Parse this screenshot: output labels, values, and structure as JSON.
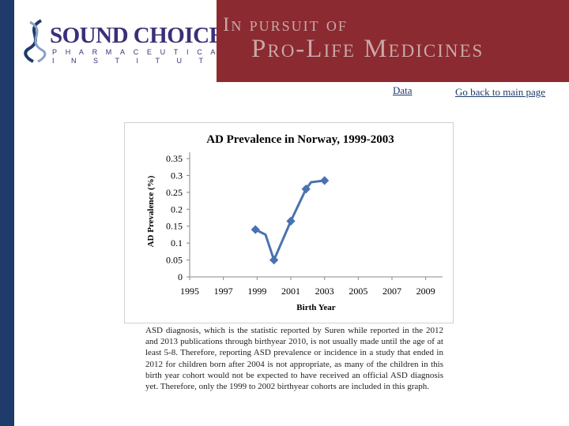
{
  "header": {
    "logo": {
      "name": "SOUND CHOICE",
      "line2": "PHARMACEUTICAL",
      "line3": "INSTITUTE"
    },
    "banner_line1": "In pursuit of",
    "banner_line2": "Pro-Life Medicines",
    "colors": {
      "banner": "#8b2a30",
      "side_bar": "#1f3b6b",
      "logo_text": "#3c2f78"
    }
  },
  "links": {
    "data": "Data",
    "back": "Go back to main page"
  },
  "note": "ASD diagnosis, which is the statistic reported by Suren while reported in the 2012 and 2013 publications through birthyear 2010, is not usually made until the age of at least 5-8. Therefore, reporting ASD prevalence or incidence in a study that ended in 2012 for children born after 2004 is not appropriate, as many of the children in this birth year cohort would not be expected to have received an official ASD diagnosis yet.  Therefore, only the 1999 to 2002 birthyear cohorts are included in this graph.",
  "chart_data": {
    "type": "line",
    "title": "AD Prevalence in Norway, 1999-2003",
    "xlabel": "Birth Year",
    "ylabel": "AD Prevalence (%)",
    "x": [
      1998.9,
      1999.5,
      2000.0,
      2001.0,
      2001.9,
      2002.2,
      2003.0
    ],
    "values": [
      0.14,
      0.125,
      0.05,
      0.165,
      0.26,
      0.28,
      0.285
    ],
    "xlim": [
      1995,
      2010
    ],
    "ylim": [
      0,
      0.35
    ],
    "x_ticks": [
      "1995",
      "1997",
      "1999",
      "2001",
      "2003",
      "2005",
      "2007",
      "2009"
    ],
    "y_ticks": [
      "0",
      "0.05",
      "0.1",
      "0.15",
      "0.2",
      "0.25",
      "0.3",
      "0.35"
    ],
    "marker_indices": [
      0,
      2,
      3,
      4,
      6
    ],
    "grid": false,
    "legend": "none",
    "series_color": "#4a72b0"
  }
}
